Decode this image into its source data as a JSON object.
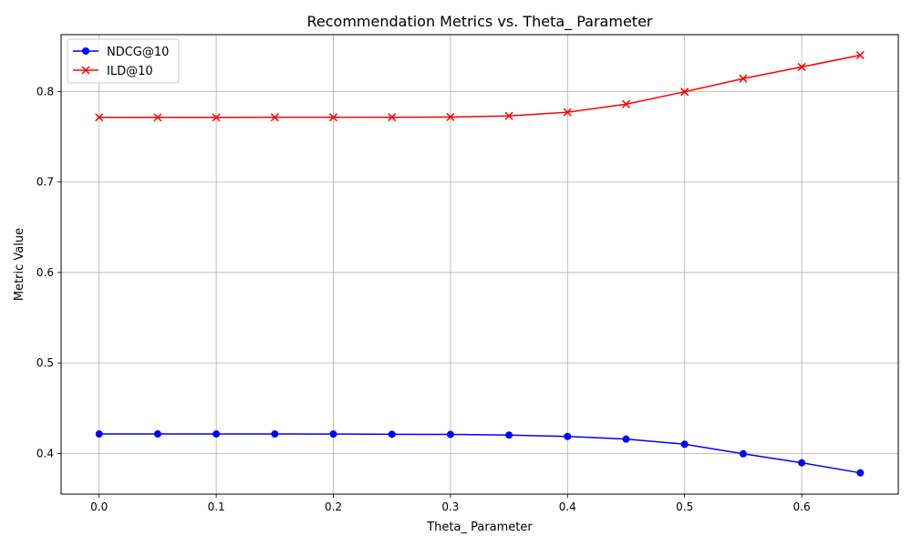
{
  "chart_data": {
    "type": "line",
    "title": "Recommendation Metrics vs. Theta_ Parameter",
    "xlabel": "Theta_ Parameter",
    "ylabel": "Metric Value",
    "x": [
      0.0,
      0.05,
      0.1,
      0.15,
      0.2,
      0.25,
      0.3,
      0.35,
      0.4,
      0.45,
      0.5,
      0.55,
      0.6,
      0.65
    ],
    "xlim": [
      -0.0325,
      0.6825
    ],
    "ylim": [
      0.355,
      0.863
    ],
    "xticks": [
      0.0,
      0.1,
      0.2,
      0.3,
      0.4,
      0.5,
      0.6
    ],
    "xtick_labels": [
      "0.0",
      "0.1",
      "0.2",
      "0.3",
      "0.4",
      "0.5",
      "0.6"
    ],
    "yticks": [
      0.4,
      0.5,
      0.6,
      0.7,
      0.8
    ],
    "ytick_labels": [
      "0.4",
      "0.5",
      "0.6",
      "0.7",
      "0.8"
    ],
    "grid": true,
    "legend_position": "top-left",
    "series": [
      {
        "name": "NDCG@10",
        "color": "#0000ff",
        "marker": "circle",
        "values": [
          0.4215,
          0.4215,
          0.4215,
          0.4215,
          0.4214,
          0.4212,
          0.421,
          0.4203,
          0.4188,
          0.4158,
          0.4102,
          0.3996,
          0.3896,
          0.3785
        ]
      },
      {
        "name": "ILD@10",
        "color": "#ff0000",
        "marker": "x",
        "values": [
          0.7715,
          0.7715,
          0.7715,
          0.7716,
          0.7716,
          0.7717,
          0.7719,
          0.7732,
          0.7772,
          0.7862,
          0.7998,
          0.8144,
          0.8273,
          0.8403
        ]
      }
    ]
  }
}
